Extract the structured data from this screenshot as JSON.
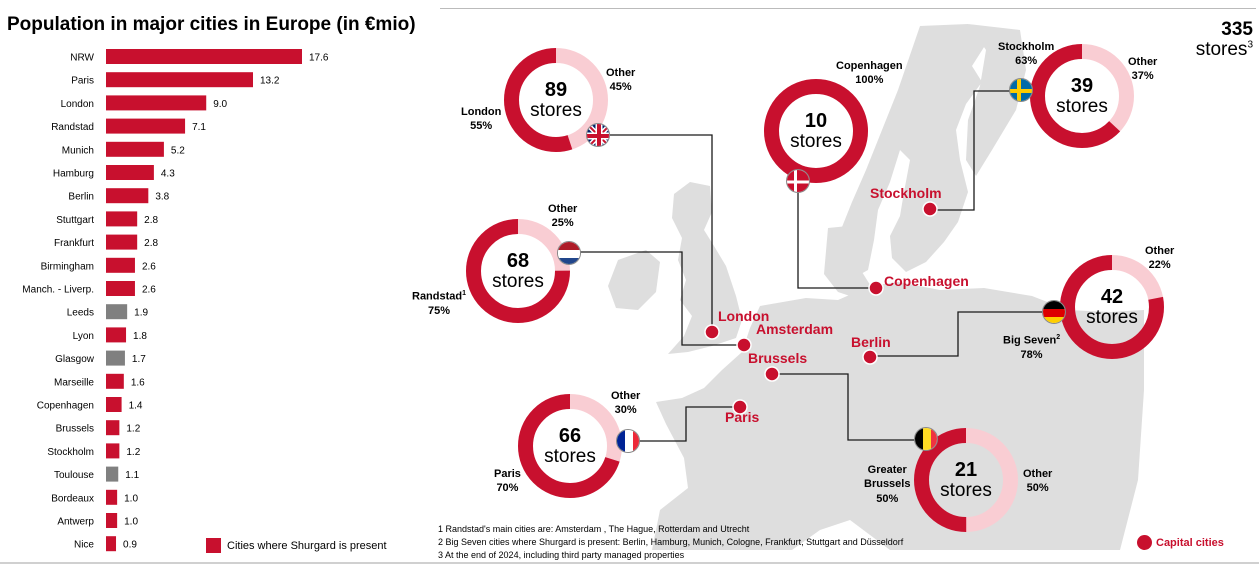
{
  "title": "Population in major cities in Europe (in €mio)",
  "colors": {
    "shurgard": "#c8102e",
    "other": "#808080",
    "light": "#f9cdd3",
    "land": "#dedede"
  },
  "chart_data": {
    "type": "bar",
    "orientation": "horizontal",
    "title": "Population in major cities in Europe (in €mio)",
    "categories": [
      "NRW",
      "Paris",
      "London",
      "Randstad",
      "Munich",
      "Hamburg",
      "Berlin",
      "Stuttgart",
      "Frankfurt",
      "Birmingham",
      "Manch. - Liverp.",
      "Leeds",
      "Lyon",
      "Glasgow",
      "Marseille",
      "Copenhagen",
      "Brussels",
      "Stockholm",
      "Toulouse",
      "Bordeaux",
      "Antwerp",
      "Nice"
    ],
    "values": [
      17.6,
      13.2,
      9.0,
      7.1,
      5.2,
      4.3,
      3.8,
      2.8,
      2.8,
      2.6,
      2.6,
      1.9,
      1.8,
      1.7,
      1.6,
      1.4,
      1.2,
      1.2,
      1.1,
      1.0,
      1.0,
      0.9
    ],
    "value_labels": [
      "17.6",
      "13.2",
      "9.0",
      "7.1",
      "5.2",
      "4.3",
      "3.8",
      "2.8",
      "2.8",
      "2.6",
      "2.6",
      "1.9",
      "1.8",
      "1.7",
      "1.6",
      "1.4",
      "1.2",
      "1.2",
      "1.1",
      "1.0",
      "1.0",
      "0.9"
    ],
    "shurgard_present": [
      true,
      true,
      true,
      true,
      true,
      true,
      true,
      true,
      true,
      true,
      true,
      false,
      true,
      false,
      true,
      true,
      true,
      true,
      false,
      true,
      true,
      true
    ],
    "legend": "Cities where Shurgard is present",
    "legend_position": "bottom"
  },
  "total": {
    "count": "335",
    "unit": "stores",
    "note": "3"
  },
  "cities": {
    "london": "London",
    "amsterdam": "Amsterdam",
    "brussels": "Brussels",
    "paris": "Paris",
    "copenhagen": "Copenhagen",
    "stockholm": "Stockholm",
    "berlin": "Berlin"
  },
  "donuts": {
    "uk": {
      "count": "89",
      "unit": "stores",
      "main_label": "London",
      "main_pct": "55%",
      "other_label": "Other",
      "other_pct": "45%",
      "main_share": 55
    },
    "nl": {
      "count": "68",
      "unit": "stores",
      "main_label": "Randstad",
      "main_note": "1",
      "main_pct": "75%",
      "other_label": "Other",
      "other_pct": "25%",
      "main_share": 75
    },
    "dk": {
      "count": "10",
      "unit": "stores",
      "main_label": "Copenhagen",
      "main_pct": "100%",
      "main_share": 100
    },
    "se": {
      "count": "39",
      "unit": "stores",
      "main_label": "Stockholm",
      "main_pct": "63%",
      "other_label": "Other",
      "other_pct": "37%",
      "main_share": 63
    },
    "de": {
      "count": "42",
      "unit": "stores",
      "main_label": "Big Seven",
      "main_note": "2",
      "main_pct": "78%",
      "other_label": "Other",
      "other_pct": "22%",
      "main_share": 78
    },
    "fr": {
      "count": "66",
      "unit": "stores",
      "main_label": "Paris",
      "main_pct": "70%",
      "other_label": "Other",
      "other_pct": "30%",
      "main_share": 70
    },
    "be": {
      "count": "21",
      "unit": "stores",
      "main_label_1": "Greater",
      "main_label_2": "Brussels",
      "main_pct": "50%",
      "other_label": "Other",
      "other_pct": "50%",
      "main_share": 50
    }
  },
  "footnotes": [
    "1  Randstad's main cities are: Amsterdam , The Hague, Rotterdam and Utrecht",
    "2  Big Seven cities where Shurgard is present: Berlin, Hamburg, Munich, Cologne, Frankfurt, Stuttgart and Düsseldorf",
    "3  At the end of 2024, including third party managed properties"
  ],
  "capital_legend": "Capital cities"
}
